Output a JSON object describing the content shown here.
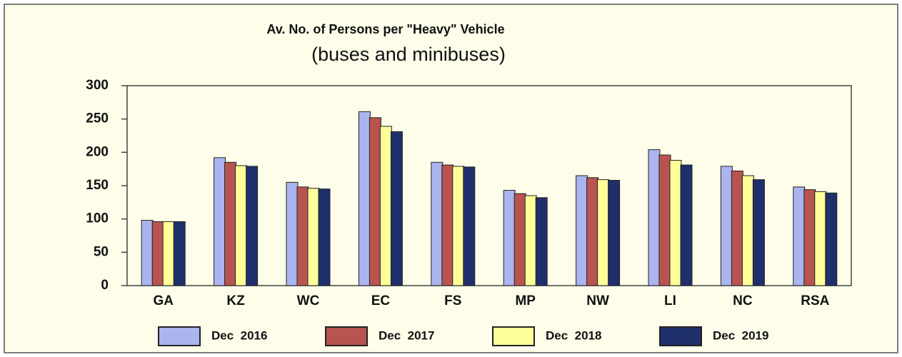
{
  "chart_data": {
    "type": "bar",
    "title": "Av. No. of Persons per \"Heavy\" Vehicle",
    "subtitle": "(buses and minibuses)",
    "categories": [
      "GA",
      "KZ",
      "WC",
      "EC",
      "FS",
      "MP",
      "NW",
      "LI",
      "NC",
      "RSA"
    ],
    "series": [
      {
        "name": "Dec  2016",
        "color": "#aab4ee",
        "values": [
          98,
          192,
          155,
          261,
          185,
          143,
          165,
          204,
          179,
          148
        ]
      },
      {
        "name": "Dec  2017",
        "color": "#b85450",
        "values": [
          96,
          185,
          148,
          252,
          181,
          138,
          162,
          196,
          172,
          144
        ]
      },
      {
        "name": "Dec  2018",
        "color": "#ffff99",
        "values": [
          96,
          180,
          146,
          239,
          179,
          135,
          159,
          188,
          165,
          141
        ]
      },
      {
        "name": "Dec  2019",
        "color": "#1f2f6b",
        "values": [
          96,
          179,
          145,
          231,
          178,
          132,
          158,
          181,
          159,
          139
        ]
      }
    ],
    "ylim": [
      0,
      300
    ],
    "yticks": [
      0,
      50,
      100,
      150,
      200,
      250,
      300
    ],
    "legend": "bottom"
  }
}
